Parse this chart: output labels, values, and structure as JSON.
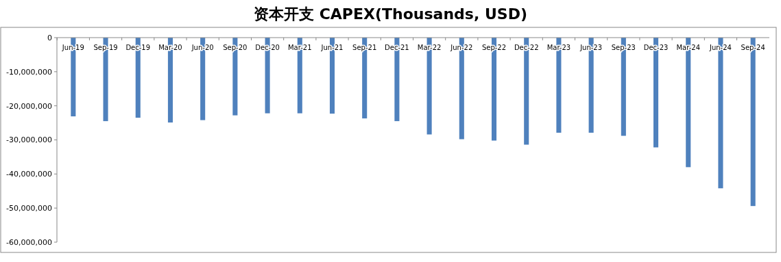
{
  "chart_data": {
    "type": "bar",
    "title": "资本开支 CAPEX(Thousands, USD)",
    "categories": [
      "Jun-19",
      "Sep-19",
      "Dec-19",
      "Mar-20",
      "Jun-20",
      "Sep-20",
      "Dec-20",
      "Mar-21",
      "Jun-21",
      "Sep-21",
      "Dec-21",
      "Mar-22",
      "Jun-22",
      "Sep-22",
      "Dec-22",
      "Mar-23",
      "Jun-23",
      "Sep-23",
      "Dec-23",
      "Mar-24",
      "Jun-24",
      "Sep-24"
    ],
    "values": [
      -23100000,
      -24500000,
      -23500000,
      -24900000,
      -24200000,
      -22800000,
      -22200000,
      -22200000,
      -22300000,
      -23700000,
      -24500000,
      -28400000,
      -29800000,
      -30200000,
      -31400000,
      -27900000,
      -27900000,
      -28800000,
      -32200000,
      -38000000,
      -44200000,
      -49400000
    ],
    "color": "#4f81bd",
    "ylim": [
      -60000000,
      0
    ],
    "yticks": [
      0,
      {
        "value": -10000000,
        "label": "-10,000,000"
      },
      {
        "value": -20000000,
        "label": "-20,000,000"
      },
      {
        "value": -30000000,
        "label": "-30,000,000"
      },
      {
        "value": -40000000,
        "label": "-40,000,000"
      },
      {
        "value": -50000000,
        "label": "-50,000,000"
      },
      {
        "value": -60000000,
        "label": "-60,000,000"
      }
    ],
    "grid": false
  }
}
